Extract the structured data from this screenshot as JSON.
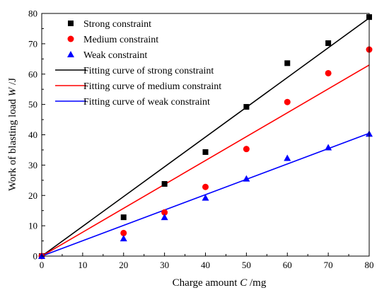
{
  "chart_data": {
    "type": "scatter",
    "xlabel": {
      "prefix": "Charge amount ",
      "symbol": "C",
      "suffix": " /mg"
    },
    "ylabel": {
      "prefix": "Work of blasting load ",
      "symbol": "W",
      "suffix": " /J"
    },
    "xlim": [
      0,
      80
    ],
    "ylim": [
      0,
      80
    ],
    "xticks": [
      0,
      10,
      20,
      30,
      40,
      50,
      60,
      70,
      80
    ],
    "yticks": [
      0,
      10,
      20,
      30,
      40,
      50,
      60,
      70,
      80
    ],
    "legend_position": "top-left",
    "series": [
      {
        "name": "Strong constraint",
        "kind": "points",
        "marker": "square",
        "color": "#000000",
        "x": [
          0,
          20,
          30,
          40,
          50,
          60,
          70,
          80
        ],
        "y": [
          0,
          12.8,
          23.8,
          34.3,
          49.2,
          63.6,
          70.2,
          78.8
        ]
      },
      {
        "name": "Medium constraint",
        "kind": "points",
        "marker": "circle",
        "color": "#ff0000",
        "x": [
          0,
          20,
          30,
          40,
          50,
          60,
          70,
          80
        ],
        "y": [
          0,
          7.6,
          14.4,
          22.8,
          35.3,
          50.8,
          60.3,
          68.1
        ]
      },
      {
        "name": "Weak constraint",
        "kind": "points",
        "marker": "triangle",
        "color": "#0000ff",
        "x": [
          0,
          20,
          30,
          40,
          50,
          60,
          70,
          80
        ],
        "y": [
          0,
          5.8,
          12.8,
          19.2,
          25.5,
          32.3,
          35.8,
          40.3
        ]
      },
      {
        "name": "Fitting curve of strong constraint",
        "kind": "line",
        "color": "#000000",
        "x": [
          0,
          80
        ],
        "y": [
          0,
          78.5
        ]
      },
      {
        "name": "Fitting curve of medium constraint",
        "kind": "line",
        "color": "#ff0000",
        "x": [
          0,
          80
        ],
        "y": [
          0,
          63
        ]
      },
      {
        "name": "Fitting curve of weak constraint",
        "kind": "line",
        "color": "#0000ff",
        "x": [
          0,
          80
        ],
        "y": [
          0,
          40.5
        ]
      }
    ]
  }
}
